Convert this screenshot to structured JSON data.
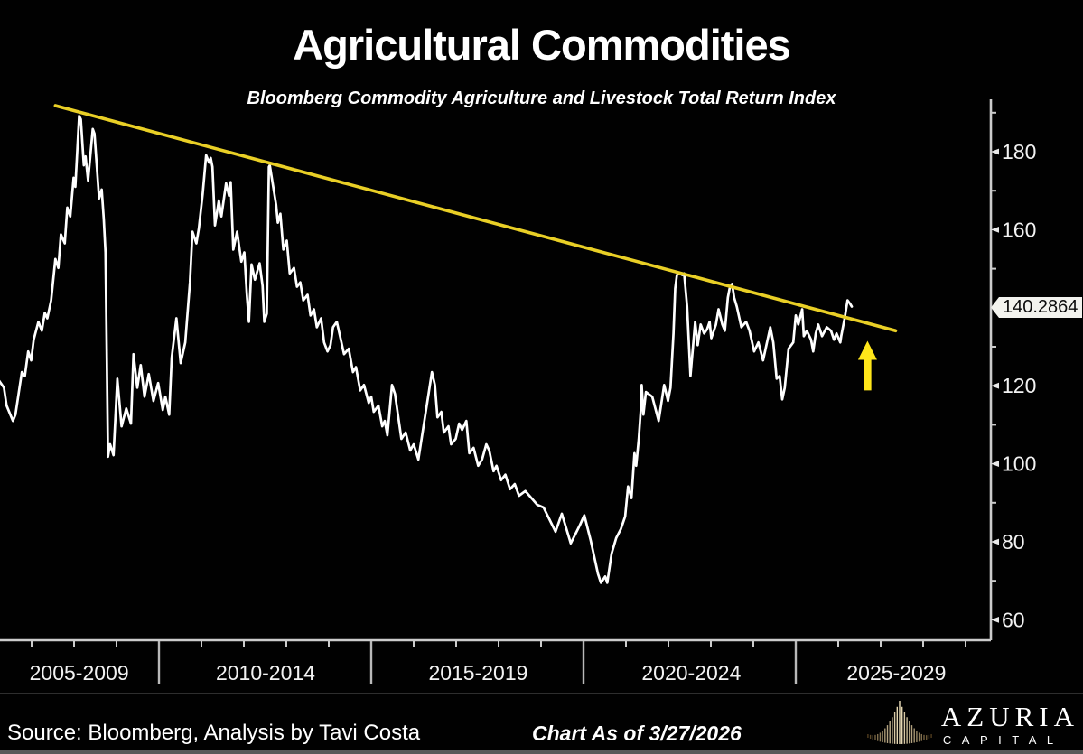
{
  "title": "Agricultural Commodities",
  "subtitle": "Bloomberg Commodity Agriculture and Livestock Total Return Index",
  "footer": {
    "source": "Source: Bloomberg, Analysis by Tavi Costa",
    "as_of": "Chart As of 3/27/2026",
    "brand_name": "AZURIA",
    "brand_sub": "CAPITAL"
  },
  "colors": {
    "series": "#ffffff",
    "trendline": "#e9cf26",
    "arrow": "#ffe61a",
    "axis": "#cccccc",
    "tick_label": "#f2f2f2",
    "tag_bg": "#f3f3ee",
    "tag_text": "#0d0d0d",
    "logo_center": "#f0e3bd",
    "logo_edge": "#513d1e"
  },
  "chart_data": {
    "type": "line",
    "title": "Agricultural Commodities",
    "subtitle": "Bloomberg Commodity Agriculture and Livestock Total Return Index",
    "xlabel": "",
    "ylabel": "",
    "grid": false,
    "legend": false,
    "y_axis_side": "right",
    "xlim": [
      2006.26,
      2029.6
    ],
    "ylim": [
      54.5,
      193.5
    ],
    "y_ticks_major": [
      60,
      80,
      100,
      120,
      140,
      160,
      180
    ],
    "y_ticks_minor": [
      70,
      90,
      110,
      130,
      150,
      170,
      190
    ],
    "x_tick_years": [
      2007,
      2008,
      2009,
      2011,
      2012,
      2013,
      2014,
      2016,
      2017,
      2018,
      2019,
      2021,
      2022,
      2023,
      2024,
      2026,
      2027,
      2028,
      2029
    ],
    "x_dividers": [
      2010,
      2015,
      2020,
      2025
    ],
    "x_period_labels": [
      {
        "label": "2005-2009",
        "x": 2008.12
      },
      {
        "label": "2010-2014",
        "x": 2012.51
      },
      {
        "label": "2015-2019",
        "x": 2017.52
      },
      {
        "label": "2020-2024",
        "x": 2022.54
      },
      {
        "label": "2025-2029",
        "x": 2027.37
      }
    ],
    "trendline": {
      "from": [
        2007.56,
        191.8
      ],
      "to": [
        2027.35,
        134.1
      ]
    },
    "annotation_arrow": {
      "x": 2026.69,
      "tip_value": 131.5,
      "base_value": 118.8
    },
    "last_price": {
      "text": "140.2864",
      "value": 140.2864
    },
    "series": [
      {
        "name": "Bloomberg Commodity Agriculture and Livestock Total Return Index",
        "points": [
          [
            2006.24,
            121.2
          ],
          [
            2006.35,
            119.5
          ],
          [
            2006.41,
            114.9
          ],
          [
            2006.56,
            111.0
          ],
          [
            2006.62,
            112.6
          ],
          [
            2006.77,
            123.5
          ],
          [
            2006.84,
            122.5
          ],
          [
            2006.92,
            128.8
          ],
          [
            2006.99,
            126.5
          ],
          [
            2007.05,
            131.8
          ],
          [
            2007.16,
            136.4
          ],
          [
            2007.24,
            134.1
          ],
          [
            2007.31,
            138.7
          ],
          [
            2007.37,
            137.3
          ],
          [
            2007.46,
            141.9
          ],
          [
            2007.56,
            152.5
          ],
          [
            2007.63,
            150.2
          ],
          [
            2007.69,
            158.8
          ],
          [
            2007.78,
            156.5
          ],
          [
            2007.84,
            165.7
          ],
          [
            2007.91,
            163.4
          ],
          [
            2007.99,
            173.3
          ],
          [
            2008.03,
            171.0
          ],
          [
            2008.12,
            189.2
          ],
          [
            2008.16,
            188.3
          ],
          [
            2008.23,
            176.5
          ],
          [
            2008.27,
            178.8
          ],
          [
            2008.33,
            172.6
          ],
          [
            2008.44,
            185.8
          ],
          [
            2008.48,
            184.6
          ],
          [
            2008.59,
            168.0
          ],
          [
            2008.65,
            170.3
          ],
          [
            2008.7,
            162.7
          ],
          [
            2008.74,
            154.2
          ],
          [
            2008.8,
            101.8
          ],
          [
            2008.85,
            105.0
          ],
          [
            2008.93,
            102.2
          ],
          [
            2009.02,
            121.8
          ],
          [
            2009.12,
            109.6
          ],
          [
            2009.23,
            114.2
          ],
          [
            2009.34,
            110.3
          ],
          [
            2009.4,
            128.1
          ],
          [
            2009.49,
            119.5
          ],
          [
            2009.57,
            125.3
          ],
          [
            2009.66,
            117.2
          ],
          [
            2009.76,
            123.0
          ],
          [
            2009.87,
            116.1
          ],
          [
            2009.98,
            120.7
          ],
          [
            2010.09,
            113.8
          ],
          [
            2010.15,
            117.2
          ],
          [
            2010.24,
            112.6
          ],
          [
            2010.3,
            127.2
          ],
          [
            2010.41,
            137.3
          ],
          [
            2010.51,
            125.8
          ],
          [
            2010.62,
            131.1
          ],
          [
            2010.73,
            146.5
          ],
          [
            2010.79,
            159.5
          ],
          [
            2010.88,
            156.5
          ],
          [
            2010.94,
            160.4
          ],
          [
            2011.03,
            169.2
          ],
          [
            2011.11,
            179.1
          ],
          [
            2011.18,
            177.2
          ],
          [
            2011.22,
            178.4
          ],
          [
            2011.26,
            176.1
          ],
          [
            2011.32,
            161.1
          ],
          [
            2011.41,
            167.5
          ],
          [
            2011.47,
            163.4
          ],
          [
            2011.58,
            171.9
          ],
          [
            2011.65,
            168.7
          ],
          [
            2011.69,
            172.2
          ],
          [
            2011.75,
            154.9
          ],
          [
            2011.84,
            159.5
          ],
          [
            2011.94,
            151.8
          ],
          [
            2012.01,
            154.2
          ],
          [
            2012.07,
            143.3
          ],
          [
            2012.12,
            136.4
          ],
          [
            2012.18,
            151.1
          ],
          [
            2012.26,
            147.2
          ],
          [
            2012.37,
            151.4
          ],
          [
            2012.44,
            145.6
          ],
          [
            2012.48,
            136.4
          ],
          [
            2012.54,
            138.5
          ],
          [
            2012.59,
            176.1
          ],
          [
            2012.61,
            176.5
          ],
          [
            2012.76,
            166.4
          ],
          [
            2012.8,
            161.8
          ],
          [
            2012.86,
            164.1
          ],
          [
            2012.93,
            154.9
          ],
          [
            2013.01,
            157.2
          ],
          [
            2013.08,
            148.8
          ],
          [
            2013.18,
            150.2
          ],
          [
            2013.25,
            145.4
          ],
          [
            2013.33,
            146.5
          ],
          [
            2013.4,
            141.9
          ],
          [
            2013.5,
            143.3
          ],
          [
            2013.57,
            138.0
          ],
          [
            2013.65,
            139.6
          ],
          [
            2013.72,
            135.0
          ],
          [
            2013.82,
            137.3
          ],
          [
            2013.89,
            131.1
          ],
          [
            2013.97,
            128.8
          ],
          [
            2014.04,
            130.4
          ],
          [
            2014.1,
            135.0
          ],
          [
            2014.19,
            136.4
          ],
          [
            2014.25,
            133.4
          ],
          [
            2014.36,
            128.1
          ],
          [
            2014.47,
            129.5
          ],
          [
            2014.57,
            123.5
          ],
          [
            2014.64,
            124.8
          ],
          [
            2014.74,
            118.8
          ],
          [
            2014.83,
            120.2
          ],
          [
            2014.94,
            115.6
          ],
          [
            2015.0,
            117.2
          ],
          [
            2015.06,
            113.3
          ],
          [
            2015.17,
            114.9
          ],
          [
            2015.26,
            109.6
          ],
          [
            2015.32,
            111.0
          ],
          [
            2015.38,
            107.3
          ],
          [
            2015.49,
            120.2
          ],
          [
            2015.56,
            117.9
          ],
          [
            2015.71,
            106.4
          ],
          [
            2015.81,
            108.0
          ],
          [
            2015.92,
            103.4
          ],
          [
            2016.0,
            105.0
          ],
          [
            2016.11,
            101.1
          ],
          [
            2016.43,
            123.5
          ],
          [
            2016.5,
            120.2
          ],
          [
            2016.56,
            111.9
          ],
          [
            2016.65,
            113.3
          ],
          [
            2016.71,
            108.0
          ],
          [
            2016.82,
            109.6
          ],
          [
            2016.88,
            105.0
          ],
          [
            2016.99,
            106.4
          ],
          [
            2017.07,
            110.3
          ],
          [
            2017.14,
            108.7
          ],
          [
            2017.24,
            111.0
          ],
          [
            2017.31,
            102.7
          ],
          [
            2017.41,
            104.1
          ],
          [
            2017.52,
            99.5
          ],
          [
            2017.61,
            101.1
          ],
          [
            2017.71,
            105.0
          ],
          [
            2017.78,
            103.4
          ],
          [
            2017.88,
            98.1
          ],
          [
            2017.95,
            99.5
          ],
          [
            2018.06,
            95.8
          ],
          [
            2018.16,
            97.2
          ],
          [
            2018.27,
            93.5
          ],
          [
            2018.38,
            94.8
          ],
          [
            2018.48,
            91.8
          ],
          [
            2018.63,
            93.0
          ],
          [
            2018.91,
            89.5
          ],
          [
            2019.06,
            88.8
          ],
          [
            2019.34,
            82.6
          ],
          [
            2019.49,
            87.2
          ],
          [
            2019.7,
            79.6
          ],
          [
            2019.91,
            84.2
          ],
          [
            2020.02,
            86.8
          ],
          [
            2020.17,
            80.3
          ],
          [
            2020.34,
            71.8
          ],
          [
            2020.41,
            69.5
          ],
          [
            2020.51,
            71.1
          ],
          [
            2020.56,
            69.5
          ],
          [
            2020.66,
            76.9
          ],
          [
            2020.77,
            81.0
          ],
          [
            2020.88,
            83.3
          ],
          [
            2020.98,
            86.5
          ],
          [
            2021.05,
            94.2
          ],
          [
            2021.13,
            91.2
          ],
          [
            2021.2,
            102.7
          ],
          [
            2021.24,
            99.5
          ],
          [
            2021.3,
            106.2
          ],
          [
            2021.35,
            113.8
          ],
          [
            2021.37,
            120.2
          ],
          [
            2021.41,
            112.6
          ],
          [
            2021.47,
            118.4
          ],
          [
            2021.62,
            117.2
          ],
          [
            2021.77,
            111.0
          ],
          [
            2021.9,
            120.2
          ],
          [
            2021.99,
            116.1
          ],
          [
            2022.05,
            119.5
          ],
          [
            2022.12,
            133.4
          ],
          [
            2022.16,
            144.9
          ],
          [
            2022.2,
            148.4
          ],
          [
            2022.26,
            148.8
          ],
          [
            2022.33,
            148.4
          ],
          [
            2022.37,
            148.8
          ],
          [
            2022.44,
            140.3
          ],
          [
            2022.48,
            131.1
          ],
          [
            2022.52,
            122.5
          ],
          [
            2022.63,
            136.4
          ],
          [
            2022.69,
            130.4
          ],
          [
            2022.76,
            135.7
          ],
          [
            2022.84,
            133.4
          ],
          [
            2022.91,
            134.5
          ],
          [
            2022.97,
            136.4
          ],
          [
            2023.01,
            132.2
          ],
          [
            2023.12,
            135.7
          ],
          [
            2023.18,
            139.6
          ],
          [
            2023.27,
            135.7
          ],
          [
            2023.33,
            134.1
          ],
          [
            2023.4,
            142.6
          ],
          [
            2023.44,
            144.9
          ],
          [
            2023.5,
            146.1
          ],
          [
            2023.55,
            142.6
          ],
          [
            2023.61,
            140.3
          ],
          [
            2023.72,
            135.0
          ],
          [
            2023.83,
            136.4
          ],
          [
            2023.91,
            134.1
          ],
          [
            2024.02,
            128.8
          ],
          [
            2024.12,
            131.1
          ],
          [
            2024.23,
            126.5
          ],
          [
            2024.29,
            129.5
          ],
          [
            2024.4,
            135.0
          ],
          [
            2024.47,
            131.1
          ],
          [
            2024.55,
            121.8
          ],
          [
            2024.62,
            122.5
          ],
          [
            2024.68,
            116.5
          ],
          [
            2024.74,
            119.5
          ],
          [
            2024.83,
            129.5
          ],
          [
            2024.94,
            131.1
          ],
          [
            2025.0,
            138.0
          ],
          [
            2025.06,
            135.7
          ],
          [
            2025.15,
            139.6
          ],
          [
            2025.19,
            132.7
          ],
          [
            2025.26,
            134.1
          ],
          [
            2025.36,
            131.8
          ],
          [
            2025.41,
            128.8
          ],
          [
            2025.47,
            133.4
          ],
          [
            2025.53,
            135.7
          ],
          [
            2025.62,
            132.7
          ],
          [
            2025.73,
            135.0
          ],
          [
            2025.83,
            134.1
          ],
          [
            2025.9,
            131.8
          ],
          [
            2025.96,
            133.4
          ],
          [
            2026.05,
            131.1
          ],
          [
            2026.07,
            132.7
          ],
          [
            2026.15,
            137.3
          ],
          [
            2026.22,
            141.9
          ],
          [
            2026.28,
            141.0
          ],
          [
            2026.32,
            140.29
          ]
        ]
      }
    ]
  }
}
